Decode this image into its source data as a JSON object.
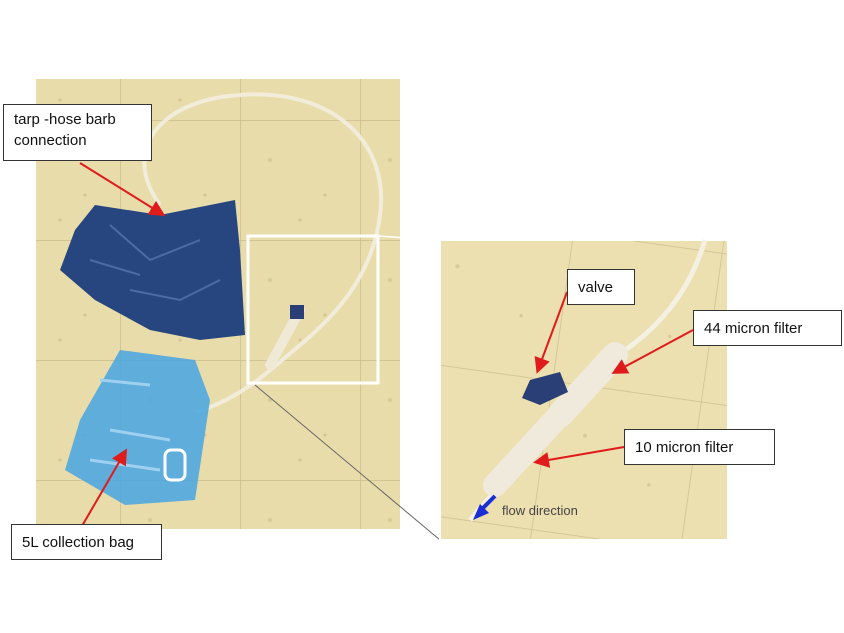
{
  "labels": {
    "tarp_line1": "tarp -hose barb",
    "tarp_line2": "connection",
    "bag": "5L collection bag",
    "valve": "valve",
    "filter44": "44 micron filter",
    "filter10": "10 micron filter",
    "flow": "flow direction"
  },
  "colors": {
    "arrow": "#e01b1b",
    "flow_arrow": "#1a2fd6",
    "floor": "#e9dcab",
    "tarp": "#27457f",
    "bag": "#4fa7df",
    "inset_frame": "#ffffff"
  }
}
